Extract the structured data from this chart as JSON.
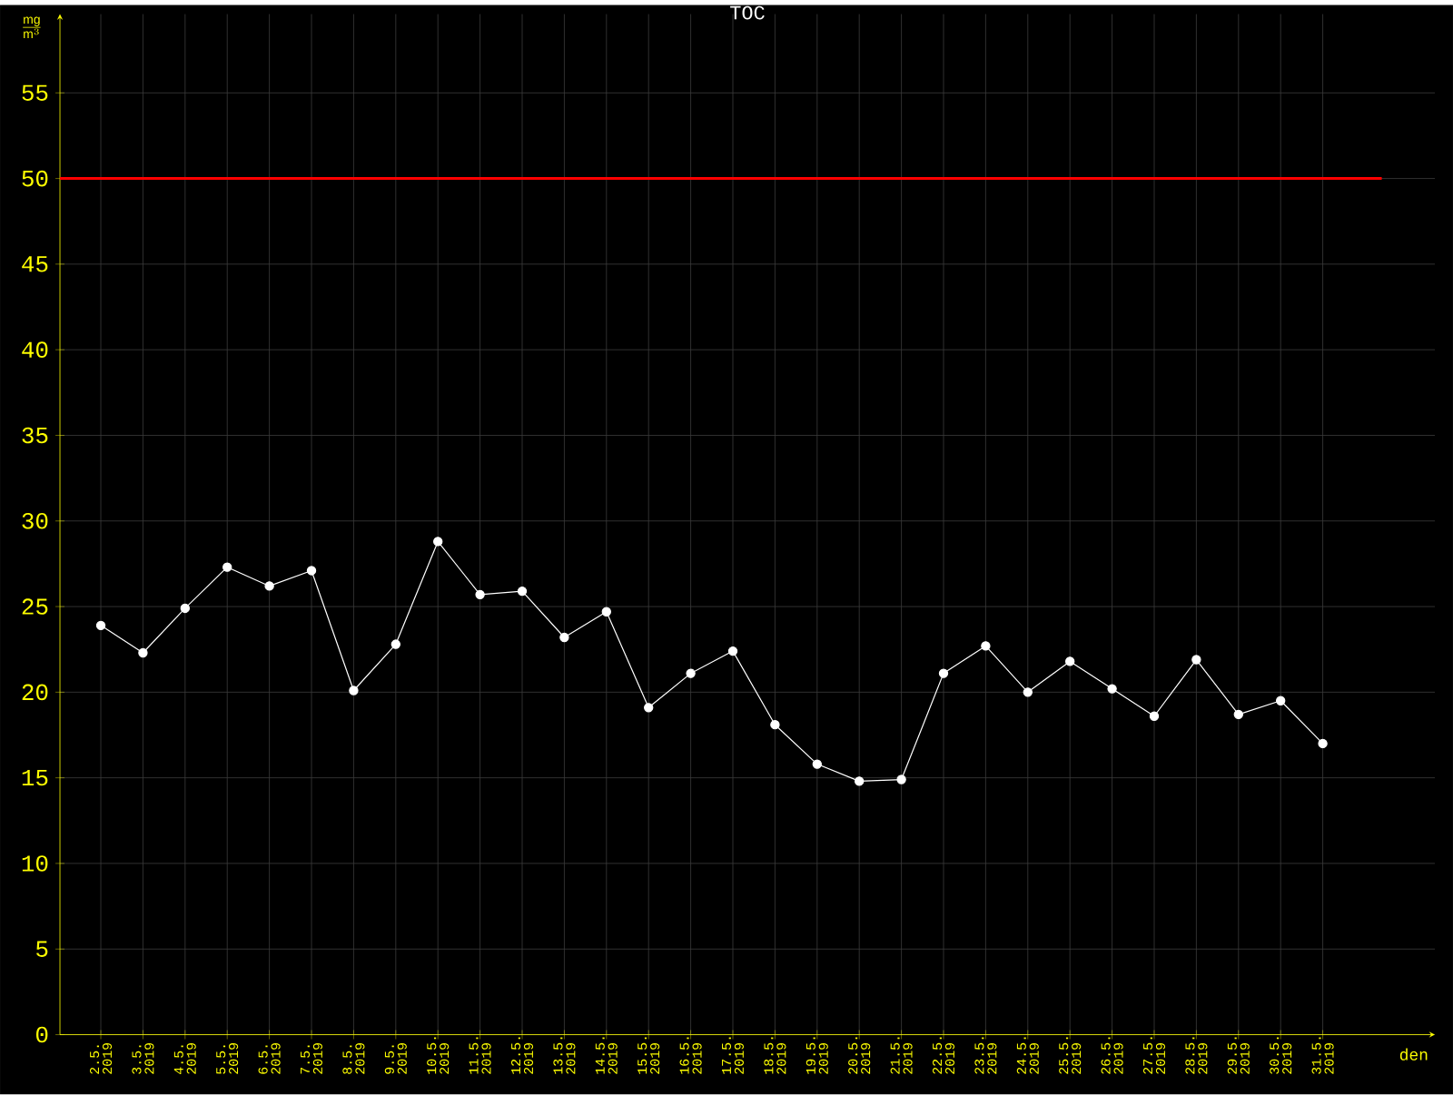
{
  "chart_data": {
    "type": "line",
    "title": "TOC",
    "xlabel": "den",
    "ylabel": "\\frac{\\mathrm{mg}}{\\mathrm{m}^{3}}",
    "categories": [
      "2.5. 2019",
      "3.5. 2019",
      "4.5. 2019",
      "5.5. 2019",
      "6.5. 2019",
      "7.5. 2019",
      "8.5. 2019",
      "9.5. 2019",
      "10.5. 2019",
      "11.5. 2019",
      "12.5. 2019",
      "13.5. 2019",
      "14.5. 2019",
      "15.5. 2019",
      "16.5. 2019",
      "17.5. 2019",
      "18.5. 2019",
      "19.5. 2019",
      "20.5. 2019",
      "21.5. 2019",
      "22.5. 2019",
      "23.5. 2019",
      "24.5. 2019",
      "25.5. 2019",
      "26.5. 2019",
      "27.5. 2019",
      "28.5. 2019",
      "29.5. 2019",
      "30.5. 2019",
      "31.5. 2019"
    ],
    "values": [
      23.9,
      22.3,
      24.9,
      27.3,
      26.2,
      27.1,
      20.1,
      22.8,
      28.8,
      25.7,
      25.9,
      23.2,
      24.7,
      19.1,
      21.1,
      22.4,
      18.1,
      15.8,
      14.8,
      14.9,
      21.1,
      22.7,
      20.0,
      21.8,
      20.2,
      18.6,
      21.9,
      18.7,
      19.5,
      17.0
    ],
    "color": "#ffffff",
    "marker": "circle",
    "grid": true,
    "ylim": [
      0,
      55
    ],
    "yticks": [
      0,
      5,
      10,
      15,
      20,
      25,
      30,
      35,
      40,
      45,
      50,
      55
    ],
    "ref_lines": [
      {
        "axis": "y",
        "value": 50,
        "color": "#ff0000"
      }
    ]
  }
}
